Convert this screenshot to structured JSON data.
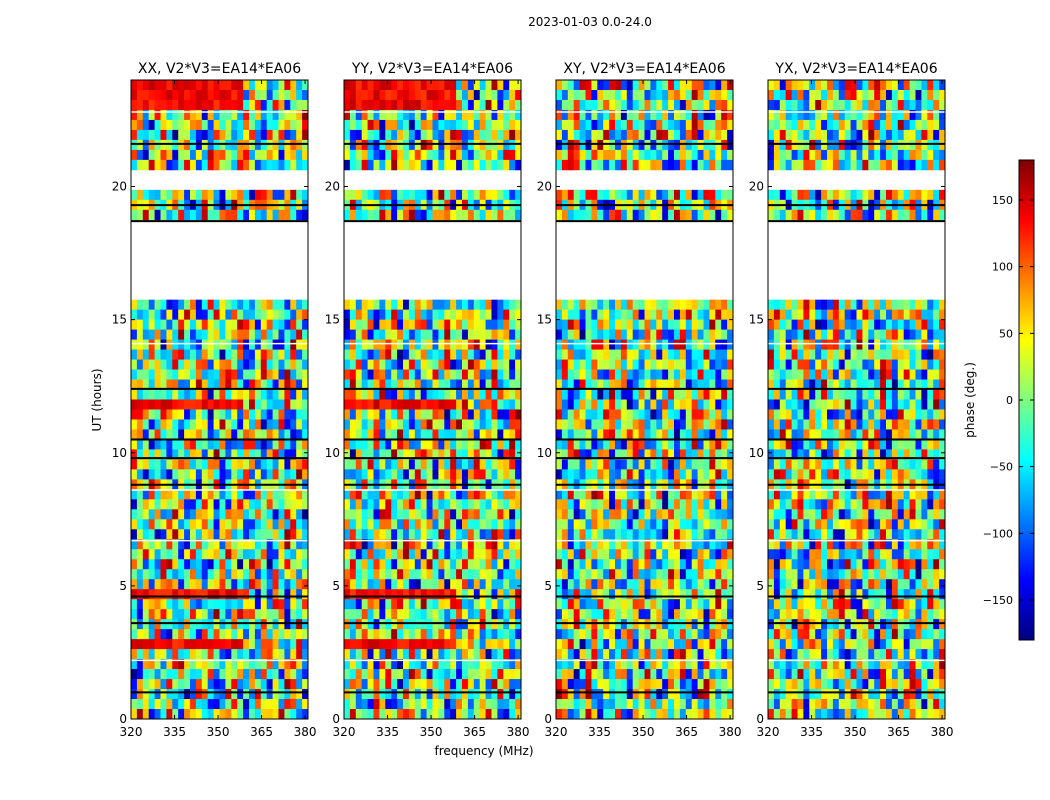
{
  "figure": {
    "suptitle": "2023-01-03 0.0-24.0"
  },
  "chart_data": {
    "type": "heatmap",
    "title": "2023-01-03 0.0-24.0",
    "xlabel": "frequency (MHz)",
    "ylabel": "UT (hours)",
    "xlim": [
      320,
      381
    ],
    "ylim": [
      0,
      24
    ],
    "x_ticks": [
      320,
      335,
      350,
      365,
      380
    ],
    "y_ticks": [
      0,
      5,
      10,
      15,
      20
    ],
    "panels": [
      {
        "title": "XX, V2*V3=EA14*EA06",
        "polarization": "XX"
      },
      {
        "title": "YY, V2*V3=EA14*EA06",
        "polarization": "YY"
      },
      {
        "title": "XY, V2*V3=EA14*EA06",
        "polarization": "XY"
      },
      {
        "title": "YX, V2*V3=EA14*EA06",
        "polarization": "YX"
      }
    ],
    "flagged_ut_ranges": [
      [
        15.9,
        18.7
      ],
      [
        19.8,
        20.6
      ]
    ],
    "colorbar": {
      "label": "phase (deg.)",
      "range": [
        -180,
        180
      ],
      "ticks": [
        -150,
        -100,
        -50,
        0,
        50,
        100,
        150
      ],
      "tick_labels": [
        "−150",
        "−100",
        "−50",
        "0",
        "50",
        "100",
        "150"
      ],
      "colormap": "jet",
      "colors": [
        "#00007f",
        "#0000ff",
        "#007fff",
        "#00ffff",
        "#7fff7f",
        "#ffff00",
        "#ff7f00",
        "#ff0000",
        "#7f0000"
      ]
    }
  }
}
